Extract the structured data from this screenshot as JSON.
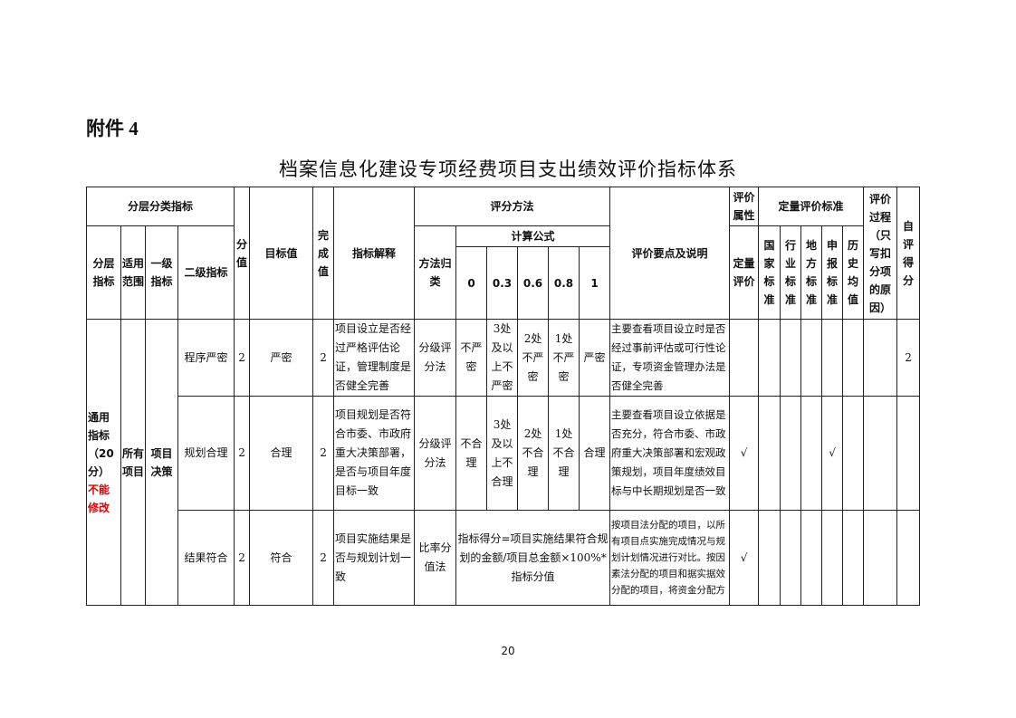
{
  "attachment_label": "附件 4",
  "title": "档案信息化建设专项经费项目支出绩效评价指标体系",
  "page_number": "20",
  "header": {
    "category_group": "分层分类指标",
    "layer_indicator": "分层指标",
    "scope": "适用范围",
    "level1": "一级指标",
    "level2": "二级指标",
    "score": "分值",
    "target": "目标值",
    "completed": "完成值",
    "explanation": "指标解释",
    "scoring_method": "评分方法",
    "method_type": "方法归类",
    "formula": "计算公式",
    "formula_levels": [
      "0",
      "0.3",
      "0.6",
      "0.8",
      "1"
    ],
    "key_points": "评价要点及说明",
    "attribute": "评价属性",
    "quantitative": "定量评价",
    "quant_standards": "定量评价标准",
    "standards": [
      "国家标准",
      "行业标准",
      "地方标准",
      "申报标准",
      "历史均值"
    ],
    "process": "评价过程（只写扣分项的原因）",
    "self_score": "自评得分"
  },
  "group": {
    "layer_text": "通用指标（20分）",
    "layer_red": "不能修改",
    "scope": "所有项目",
    "level1": "项目决策"
  },
  "rows": [
    {
      "level2": "程序严密",
      "score": "2",
      "target": "严密",
      "completed": "2",
      "explanation": "项目设立是否经过严格评估论证，管理制度是否健全完善",
      "method": "分级评分法",
      "levels": [
        "不严密",
        "3处及以上不严密",
        "2处不严密",
        "1处不严密",
        "严密"
      ],
      "key_points": "主要查看项目设立时是否经过事前评估或可行性论证，专项资金管理办法是否健全完善",
      "quantitative": "",
      "standards": [
        "",
        "",
        "",
        "",
        ""
      ],
      "process": "",
      "self_score": "2"
    },
    {
      "level2": "规划合理",
      "score": "2",
      "target": "合理",
      "completed": "2",
      "explanation": "项目规划是否符合市委、市政府重大决策部署，是否与项目年度目标一致",
      "method": "分级评分法",
      "levels": [
        "不合理",
        "3处及以上不合理",
        "2处不合理",
        "1处不合理",
        "合理"
      ],
      "key_points": "主要查看项目设立依据是否充分，符合市委、市政府重大决策部署和宏观政策规划，项目年度绩效目标与中长期规划是否一致",
      "quantitative": "√",
      "standards": [
        "",
        "",
        "",
        "√",
        ""
      ],
      "process": "",
      "self_score": ""
    },
    {
      "level2": "结果符合",
      "score": "2",
      "target": "符合",
      "completed": "2",
      "explanation": "项目实施结果是否与规划计划一致",
      "method": "比率分值法",
      "formula": "指标得分=项目实施结果符合规划的金额/项目总金额×100%*指标分值",
      "key_points": "按项目法分配的项目，以所有项目点实施完成情况与规划计划情况进行对比。按因素法分配的项目和据实据效分配的项目，将资金分配方",
      "quantitative": "√",
      "standards": [
        "",
        "",
        "",
        "",
        ""
      ],
      "process": "",
      "self_score": ""
    }
  ]
}
